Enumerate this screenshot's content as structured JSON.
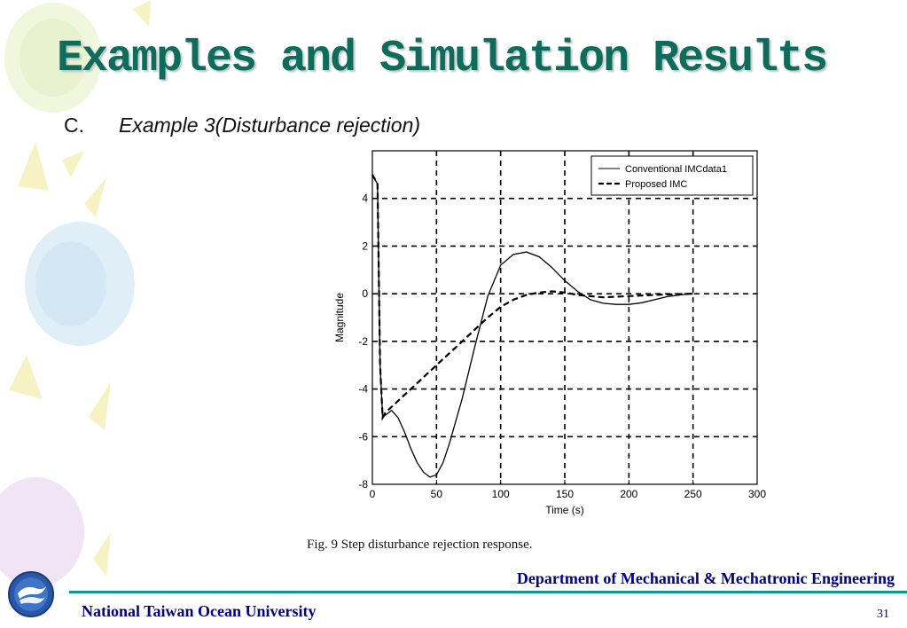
{
  "slide": {
    "title": "Examples and Simulation Results",
    "section_letter": "C.",
    "section_title": "Example 3(Disturbance rejection)",
    "caption": "Fig. 9 Step disturbance rejection response.",
    "department": "Department of Mechanical & Mechatronic Engineering",
    "university": "National Taiwan Ocean University",
    "page_number": "31"
  },
  "colors": {
    "title": "#0f6b5c",
    "footer_text": "#00007e",
    "footer_line": "#0a9a92"
  },
  "chart_data": {
    "type": "line",
    "xlabel": "Time (s)",
    "ylabel": "Magnitude",
    "xlim": [
      0,
      300
    ],
    "ylim": [
      -8,
      6
    ],
    "xticks": [
      0,
      50,
      100,
      150,
      200,
      250,
      300
    ],
    "yticks": [
      -8,
      -6,
      -4,
      -2,
      0,
      2,
      4
    ],
    "grid": true,
    "legend_position": "top-right",
    "series": [
      {
        "name": "Conventional IMCdata1",
        "style": "solid",
        "x": [
          0,
          2,
          4,
          6,
          8,
          10,
          15,
          20,
          25,
          30,
          35,
          40,
          45,
          50,
          55,
          60,
          70,
          80,
          90,
          100,
          110,
          120,
          130,
          140,
          150,
          160,
          170,
          180,
          190,
          200,
          210,
          220,
          230,
          240,
          250
        ],
        "y": [
          5,
          4.8,
          4.6,
          -3,
          -5.2,
          -5.1,
          -4.9,
          -5.2,
          -5.8,
          -6.5,
          -7.1,
          -7.5,
          -7.7,
          -7.6,
          -7.1,
          -6.3,
          -4.4,
          -2.2,
          -0.1,
          1.2,
          1.65,
          1.75,
          1.55,
          1.1,
          0.55,
          0.1,
          -0.25,
          -0.4,
          -0.45,
          -0.45,
          -0.38,
          -0.25,
          -0.12,
          -0.05,
          0
        ]
      },
      {
        "name": "Proposed IMC",
        "style": "dashed",
        "x": [
          0,
          2,
          4,
          6,
          8,
          10,
          20,
          30,
          40,
          50,
          60,
          70,
          80,
          90,
          100,
          110,
          120,
          130,
          140,
          150,
          160,
          180,
          200,
          220,
          250
        ],
        "y": [
          5,
          4.8,
          4.6,
          -3,
          -5.2,
          -5.0,
          -4.5,
          -4.0,
          -3.5,
          -3.0,
          -2.5,
          -2.0,
          -1.5,
          -1.0,
          -0.55,
          -0.25,
          -0.05,
          0.05,
          0.1,
          0.05,
          -0.05,
          -0.15,
          -0.1,
          -0.05,
          0
        ]
      }
    ]
  }
}
